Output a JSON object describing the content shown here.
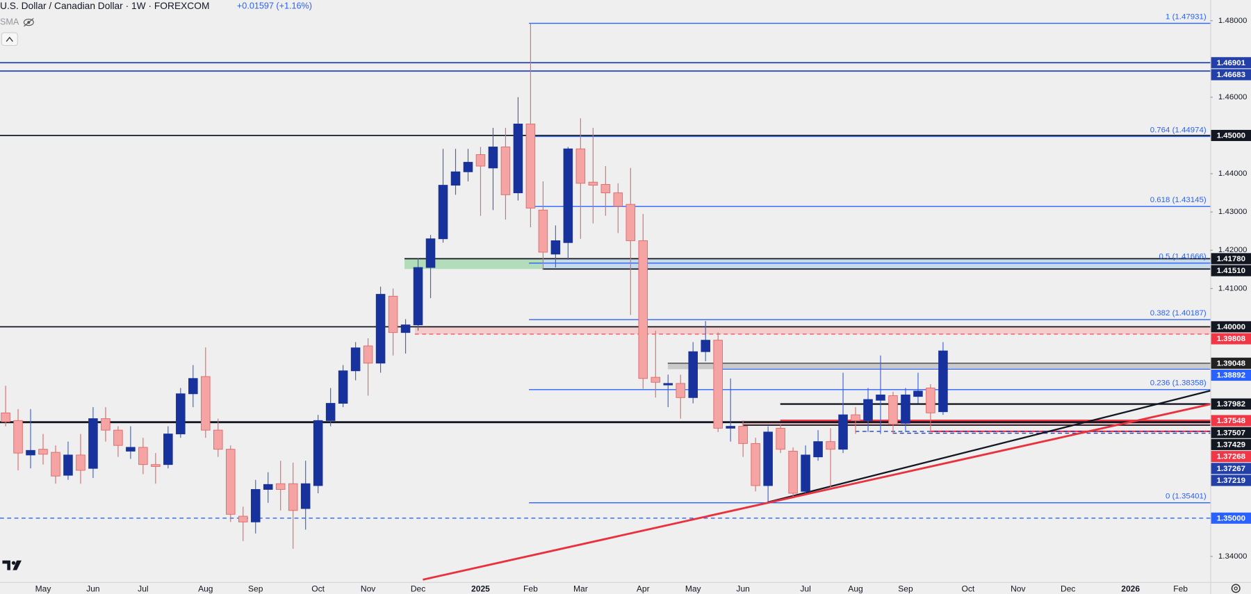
{
  "chart_data": {
    "type": "candlestick",
    "title": "U.S. Dollar / Canadian Dollar · 1W · FOREXCOM",
    "change": "+0.01597 (+1.16%)",
    "indicator": "SMA",
    "up_color": "#17329c",
    "down_color": "#f5a3a3",
    "categories": [
      null,
      null,
      null,
      "May",
      null,
      null,
      null,
      "Jun",
      null,
      null,
      null,
      "Jul",
      null,
      null,
      null,
      null,
      "Aug",
      null,
      null,
      null,
      "Sep",
      null,
      null,
      null,
      null,
      "Oct",
      null,
      null,
      null,
      "Nov",
      null,
      null,
      null,
      "Dec",
      null,
      null,
      null,
      null,
      "2025",
      null,
      null,
      null,
      "Feb",
      null,
      null,
      null,
      "Mar",
      null,
      null,
      null,
      null,
      "Apr",
      null,
      null,
      null,
      "May",
      null,
      null,
      null,
      "Jun",
      null,
      null,
      null,
      null,
      "Jul",
      null,
      null,
      null,
      "Aug",
      null,
      null,
      null,
      "Sep",
      null,
      null,
      null,
      null,
      "Oct",
      null,
      null,
      null,
      "Nov",
      null,
      null,
      null,
      "Dec",
      null,
      null,
      null,
      null,
      "2026",
      null,
      null,
      null,
      "Feb",
      null,
      null
    ],
    "open": [
      1.3775,
      1.3755,
      1.3665,
      1.368,
      1.3672,
      1.3612,
      1.3665,
      1.363,
      1.376,
      1.373,
      1.3675,
      1.3685,
      1.364,
      1.364,
      1.372,
      1.3825,
      1.387,
      1.373,
      1.368,
      1.3505,
      1.349,
      1.3575,
      1.359,
      1.359,
      1.3525,
      1.3585,
      1.3755,
      1.38,
      1.3885,
      1.395,
      1.3905,
      1.408,
      1.3985,
      1.4005,
      1.4155,
      1.423,
      1.437,
      1.4405,
      1.445,
      1.4415,
      1.447,
      1.435,
      1.453,
      1.4305,
      1.419,
      1.422,
      1.4465,
      1.4378,
      1.4372,
      1.435,
      1.432,
      1.4225,
      1.3868,
      1.3848,
      1.3852,
      1.3815,
      1.3935,
      1.3965,
      1.3735,
      1.374,
      1.3695,
      1.3585,
      1.3735,
      1.3675,
      1.357,
      1.366,
      1.37,
      1.368,
      1.377,
      1.3755,
      1.3808,
      1.382,
      1.3748,
      1.3818,
      1.384,
      1.3778,
      null,
      null,
      null,
      null,
      null,
      null,
      null,
      null,
      null,
      null,
      null,
      null,
      null,
      null,
      null,
      null,
      null,
      null,
      null,
      null,
      null
    ],
    "high": [
      1.3846,
      1.3785,
      1.3785,
      1.372,
      1.369,
      1.37,
      1.372,
      1.379,
      1.379,
      1.374,
      1.374,
      1.371,
      1.367,
      1.374,
      1.384,
      1.39,
      1.3946,
      1.376,
      1.369,
      1.353,
      1.36,
      1.362,
      1.365,
      1.3645,
      1.365,
      1.377,
      1.384,
      1.39,
      1.396,
      1.397,
      1.4105,
      1.41,
      1.402,
      1.418,
      1.424,
      1.4465,
      1.4465,
      1.4465,
      1.447,
      1.452,
      1.452,
      1.46,
      1.4793,
      1.438,
      1.4265,
      1.447,
      1.4545,
      1.452,
      1.442,
      1.4375,
      1.4415,
      1.4295,
      1.399,
      1.3875,
      1.3875,
      1.396,
      1.4015,
      1.3985,
      1.3865,
      1.3755,
      1.371,
      1.374,
      1.3745,
      1.3685,
      1.369,
      1.373,
      1.3735,
      1.388,
      1.379,
      1.384,
      1.3925,
      1.383,
      1.384,
      1.388,
      1.385,
      1.396,
      null,
      null,
      null,
      null,
      null,
      null,
      null,
      null,
      null,
      null,
      null,
      null,
      null,
      null,
      null,
      null,
      null,
      null,
      null,
      null,
      null
    ],
    "low": [
      1.374,
      1.3625,
      1.363,
      1.364,
      1.359,
      1.36,
      1.359,
      1.3605,
      1.37,
      1.366,
      1.3655,
      1.3615,
      1.359,
      1.363,
      1.371,
      1.379,
      1.371,
      1.366,
      1.349,
      1.344,
      1.346,
      1.354,
      1.352,
      1.342,
      1.347,
      1.3565,
      1.374,
      1.379,
      1.386,
      1.382,
      1.388,
      1.3925,
      1.393,
      1.399,
      1.4075,
      1.422,
      1.4345,
      1.438,
      1.429,
      1.4305,
      1.428,
      1.433,
      1.426,
      1.415,
      1.4155,
      1.4175,
      1.423,
      1.427,
      1.429,
      1.4245,
      1.4031,
      1.3838,
      1.3815,
      1.379,
      1.376,
      1.38,
      1.391,
      1.3725,
      1.37,
      1.366,
      1.357,
      1.354,
      1.367,
      1.3556,
      1.3565,
      1.365,
      1.358,
      1.367,
      1.372,
      1.3725,
      1.372,
      1.372,
      1.3725,
      1.38,
      1.3725,
      1.377,
      null,
      null,
      null,
      null,
      null,
      null,
      null,
      null,
      null,
      null,
      null,
      null,
      null,
      null,
      null,
      null,
      null,
      null,
      null,
      null,
      null
    ],
    "close": [
      1.3752,
      1.367,
      1.3677,
      1.3667,
      1.361,
      1.3665,
      1.3625,
      1.376,
      1.373,
      1.369,
      1.3685,
      1.364,
      1.3635,
      1.372,
      1.3825,
      1.3865,
      1.373,
      1.368,
      1.351,
      1.349,
      1.3575,
      1.3588,
      1.3575,
      1.352,
      1.359,
      1.3755,
      1.38,
      1.3885,
      1.3945,
      1.3905,
      1.4085,
      1.3985,
      1.4005,
      1.4155,
      1.423,
      1.437,
      1.4405,
      1.443,
      1.442,
      1.447,
      1.4345,
      1.453,
      1.431,
      1.4195,
      1.4225,
      1.4465,
      1.4375,
      1.437,
      1.435,
      1.4315,
      1.4225,
      1.3865,
      1.3855,
      1.3852,
      1.3815,
      1.3935,
      1.3965,
      1.3735,
      1.374,
      1.3695,
      1.3585,
      1.3725,
      1.368,
      1.3565,
      1.3665,
      1.37,
      1.368,
      1.377,
      1.3755,
      1.381,
      1.3822,
      1.3745,
      1.3822,
      1.3832,
      1.3775,
      1.3937,
      null,
      null,
      null,
      null,
      null,
      null,
      null,
      null,
      null,
      null,
      null,
      null,
      null,
      null,
      null,
      null,
      null,
      null,
      null,
      null,
      null
    ],
    "ylim": [
      1.3333,
      1.4854
    ],
    "yticks": [
      {
        "value": 1.34,
        "label": "1.34000"
      },
      {
        "value": 1.41,
        "label": "1.41000"
      },
      {
        "value": 1.42,
        "label": "1.42000"
      },
      {
        "value": 1.43,
        "label": "1.43000"
      },
      {
        "value": 1.44,
        "label": "1.44000"
      },
      {
        "value": 1.46,
        "label": "1.46000"
      },
      {
        "value": 1.48,
        "label": "1.48000"
      }
    ],
    "grid": false,
    "levels": [
      {
        "value": 1.46901,
        "label": "1.46901",
        "color": "#2340a8",
        "style": "solid"
      },
      {
        "value": 1.46683,
        "label": "1.46683",
        "color": "#2340a8",
        "style": "solid"
      },
      {
        "value": 1.45,
        "label": "1.45000",
        "color": "#131722",
        "style": "solid"
      },
      {
        "value": 1.4178,
        "label": "1.41780",
        "color": "#131722",
        "style": "solid"
      },
      {
        "value": 1.4151,
        "label": "1.41510",
        "color": "#131722",
        "style": "solid"
      },
      {
        "value": 1.4,
        "label": "1.40000",
        "color": "#131722",
        "style": "solid"
      },
      {
        "value": 1.39808,
        "label": "1.39808",
        "color": "#f23645",
        "style": "dashed"
      },
      {
        "value": 1.39048,
        "label": "1.39048",
        "color": "#222222",
        "style": "solid"
      },
      {
        "value": 1.38892,
        "label": "1.38892",
        "color": "#2962ff",
        "style": "solid"
      },
      {
        "value": 1.37982,
        "label": "1.37982",
        "color": "#131722",
        "style": "solid"
      },
      {
        "value": 1.37548,
        "label": "1.37548",
        "color": "#f23645",
        "style": "solid"
      },
      {
        "value": 1.37507,
        "label": "1.37507",
        "color": "#131722",
        "style": "solid"
      },
      {
        "value": 1.37429,
        "label": "1.37429",
        "color": "#131722",
        "style": "solid"
      },
      {
        "value": 1.37268,
        "label": "1.37268",
        "color": "#f23645",
        "style": "solid"
      },
      {
        "value": 1.37267,
        "label": "1.37267",
        "color": "#2340a8",
        "style": "dashed"
      },
      {
        "value": 1.37219,
        "label": "1.37219",
        "color": "#2340a8",
        "style": "dashed"
      },
      {
        "value": 1.35,
        "label": "1.35000",
        "color": "#2962ff",
        "style": "dashed"
      }
    ],
    "fibonacci": [
      {
        "value": 1.47931,
        "label": "1 (1.47931)"
      },
      {
        "value": 1.44974,
        "label": "0.764 (1.44974)"
      },
      {
        "value": 1.43145,
        "label": "0.618 (1.43145)"
      },
      {
        "value": 1.41666,
        "label": "0.5 (1.41666)"
      },
      {
        "value": 1.40187,
        "label": "0.382 (1.40187)"
      },
      {
        "value": 1.38358,
        "label": "0.236 (1.38358)"
      },
      {
        "value": 1.35401,
        "label": "0 (1.35401)"
      }
    ],
    "fib_color": "#2962ff"
  }
}
